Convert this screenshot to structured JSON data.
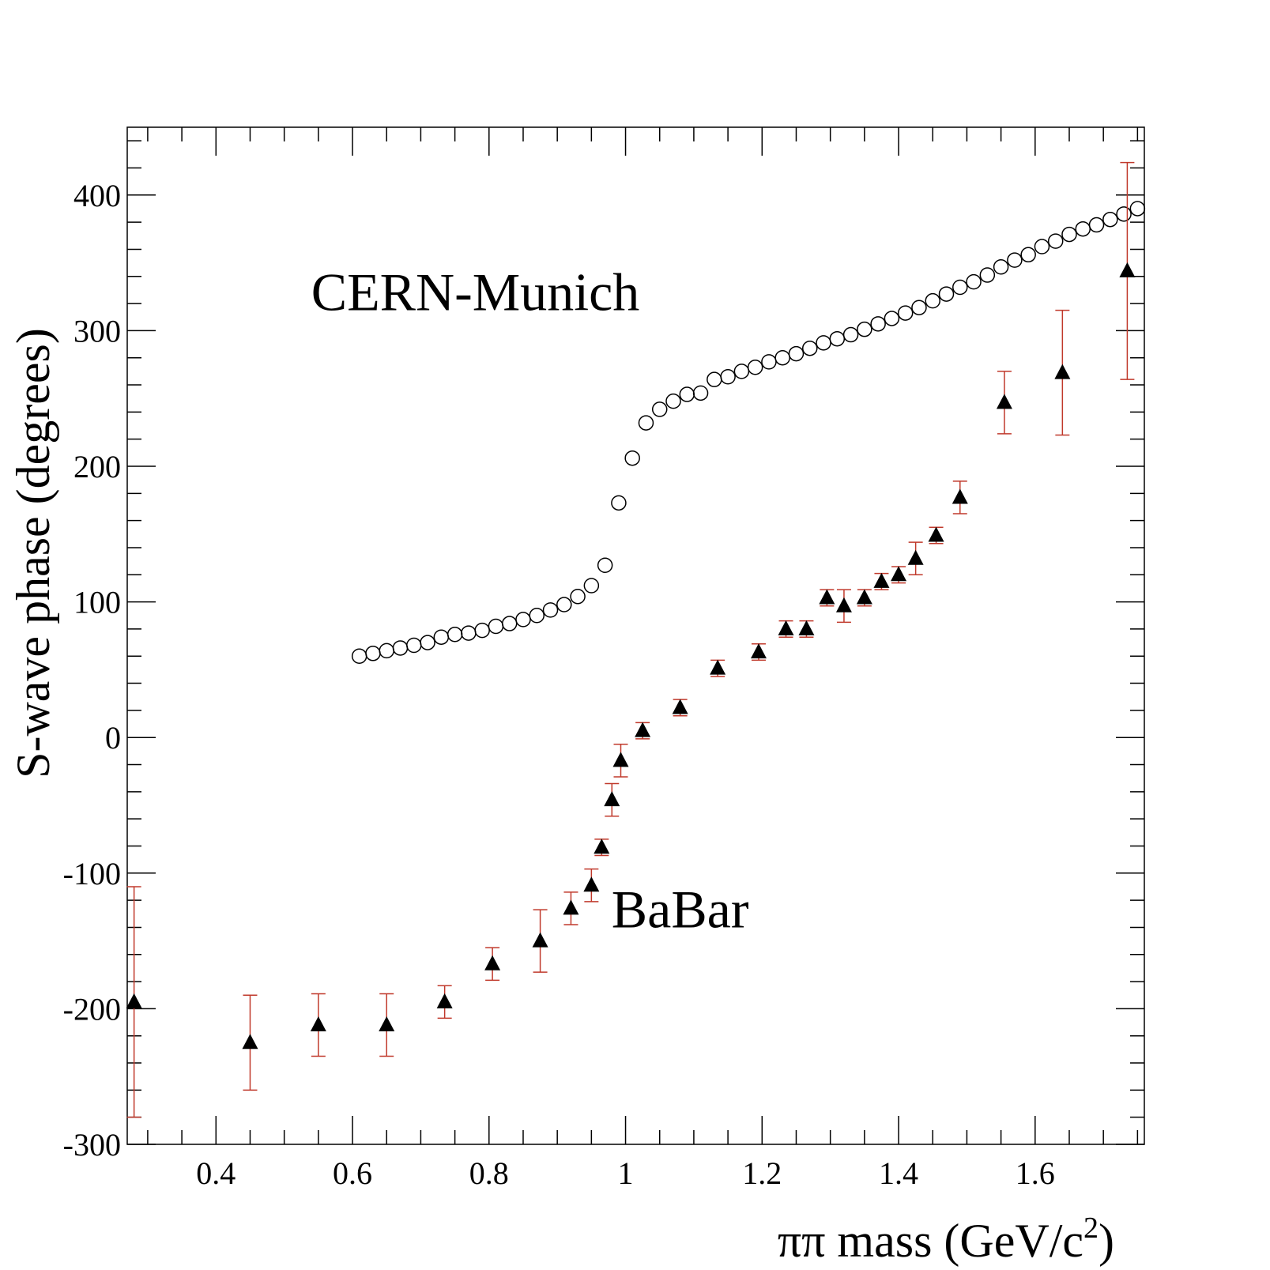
{
  "chart_data": {
    "type": "scatter",
    "title": "",
    "xlabel": "ππ mass  (GeV/c",
    "xlabel_sup": "2",
    "xlabel_close": ")",
    "ylabel": "S-wave phase  (degrees)",
    "xlim": [
      0.27,
      1.76
    ],
    "ylim": [
      -300,
      450
    ],
    "x_ticks": [
      0.4,
      0.6,
      0.8,
      1.0,
      1.2,
      1.4,
      1.6
    ],
    "x_tick_labels": [
      "0.4",
      "0.6",
      "0.8",
      "1",
      "1.2",
      "1.4",
      "1.6"
    ],
    "y_ticks": [
      -300,
      -200,
      -100,
      0,
      100,
      200,
      300,
      400
    ],
    "y_tick_labels": [
      "-300",
      "-200",
      "-100",
      "0",
      "100",
      "200",
      "300",
      "400"
    ],
    "annotations": [
      {
        "text": "CERN-Munich",
        "x": 0.78,
        "y": 315
      },
      {
        "text": "BaBar",
        "x": 1.08,
        "y": -140
      }
    ],
    "series": [
      {
        "name": "CERN-Munich",
        "marker": "open-circle",
        "points": [
          [
            0.61,
            60
          ],
          [
            0.63,
            62
          ],
          [
            0.65,
            64
          ],
          [
            0.67,
            66
          ],
          [
            0.69,
            68
          ],
          [
            0.71,
            70
          ],
          [
            0.73,
            74
          ],
          [
            0.75,
            76
          ],
          [
            0.77,
            77
          ],
          [
            0.79,
            79
          ],
          [
            0.81,
            82
          ],
          [
            0.83,
            84
          ],
          [
            0.85,
            87
          ],
          [
            0.87,
            90
          ],
          [
            0.89,
            94
          ],
          [
            0.91,
            98
          ],
          [
            0.93,
            104
          ],
          [
            0.95,
            112
          ],
          [
            0.97,
            127
          ],
          [
            0.99,
            173
          ],
          [
            1.01,
            206
          ],
          [
            1.03,
            232
          ],
          [
            1.05,
            242
          ],
          [
            1.07,
            248
          ],
          [
            1.09,
            253
          ],
          [
            1.11,
            254
          ],
          [
            1.13,
            264
          ],
          [
            1.15,
            266
          ],
          [
            1.17,
            270
          ],
          [
            1.19,
            273
          ],
          [
            1.21,
            277
          ],
          [
            1.23,
            280
          ],
          [
            1.25,
            283
          ],
          [
            1.27,
            287
          ],
          [
            1.29,
            291
          ],
          [
            1.31,
            294
          ],
          [
            1.33,
            297
          ],
          [
            1.35,
            301
          ],
          [
            1.37,
            305
          ],
          [
            1.39,
            309
          ],
          [
            1.41,
            313
          ],
          [
            1.43,
            317
          ],
          [
            1.45,
            322
          ],
          [
            1.47,
            327
          ],
          [
            1.49,
            332
          ],
          [
            1.51,
            336
          ],
          [
            1.53,
            341
          ],
          [
            1.55,
            347
          ],
          [
            1.57,
            352
          ],
          [
            1.59,
            356
          ],
          [
            1.61,
            362
          ],
          [
            1.63,
            366
          ],
          [
            1.65,
            371
          ],
          [
            1.67,
            375
          ],
          [
            1.69,
            378
          ],
          [
            1.71,
            382
          ],
          [
            1.73,
            386
          ],
          [
            1.75,
            390
          ]
        ]
      },
      {
        "name": "BaBar",
        "marker": "filled-triangle",
        "error_color": "#c0392b",
        "points": [
          [
            0.28,
            -195,
            85
          ],
          [
            0.45,
            -225,
            35
          ],
          [
            0.55,
            -212,
            23
          ],
          [
            0.65,
            -212,
            23
          ],
          [
            0.735,
            -195,
            12
          ],
          [
            0.805,
            -167,
            12
          ],
          [
            0.875,
            -150,
            23
          ],
          [
            0.92,
            -126,
            12
          ],
          [
            0.95,
            -109,
            12
          ],
          [
            0.965,
            -81,
            6
          ],
          [
            0.98,
            -46,
            12
          ],
          [
            0.993,
            -17,
            12
          ],
          [
            1.025,
            5,
            6
          ],
          [
            1.08,
            22,
            6
          ],
          [
            1.135,
            51,
            6
          ],
          [
            1.195,
            63,
            6
          ],
          [
            1.235,
            80,
            6
          ],
          [
            1.265,
            80,
            6
          ],
          [
            1.295,
            103,
            6
          ],
          [
            1.32,
            97,
            12
          ],
          [
            1.35,
            103,
            6
          ],
          [
            1.375,
            115,
            6
          ],
          [
            1.4,
            120,
            6
          ],
          [
            1.425,
            132,
            12
          ],
          [
            1.455,
            149,
            6
          ],
          [
            1.49,
            177,
            12
          ],
          [
            1.555,
            247,
            23
          ],
          [
            1.64,
            269,
            46
          ],
          [
            1.735,
            344,
            80
          ]
        ]
      }
    ]
  }
}
